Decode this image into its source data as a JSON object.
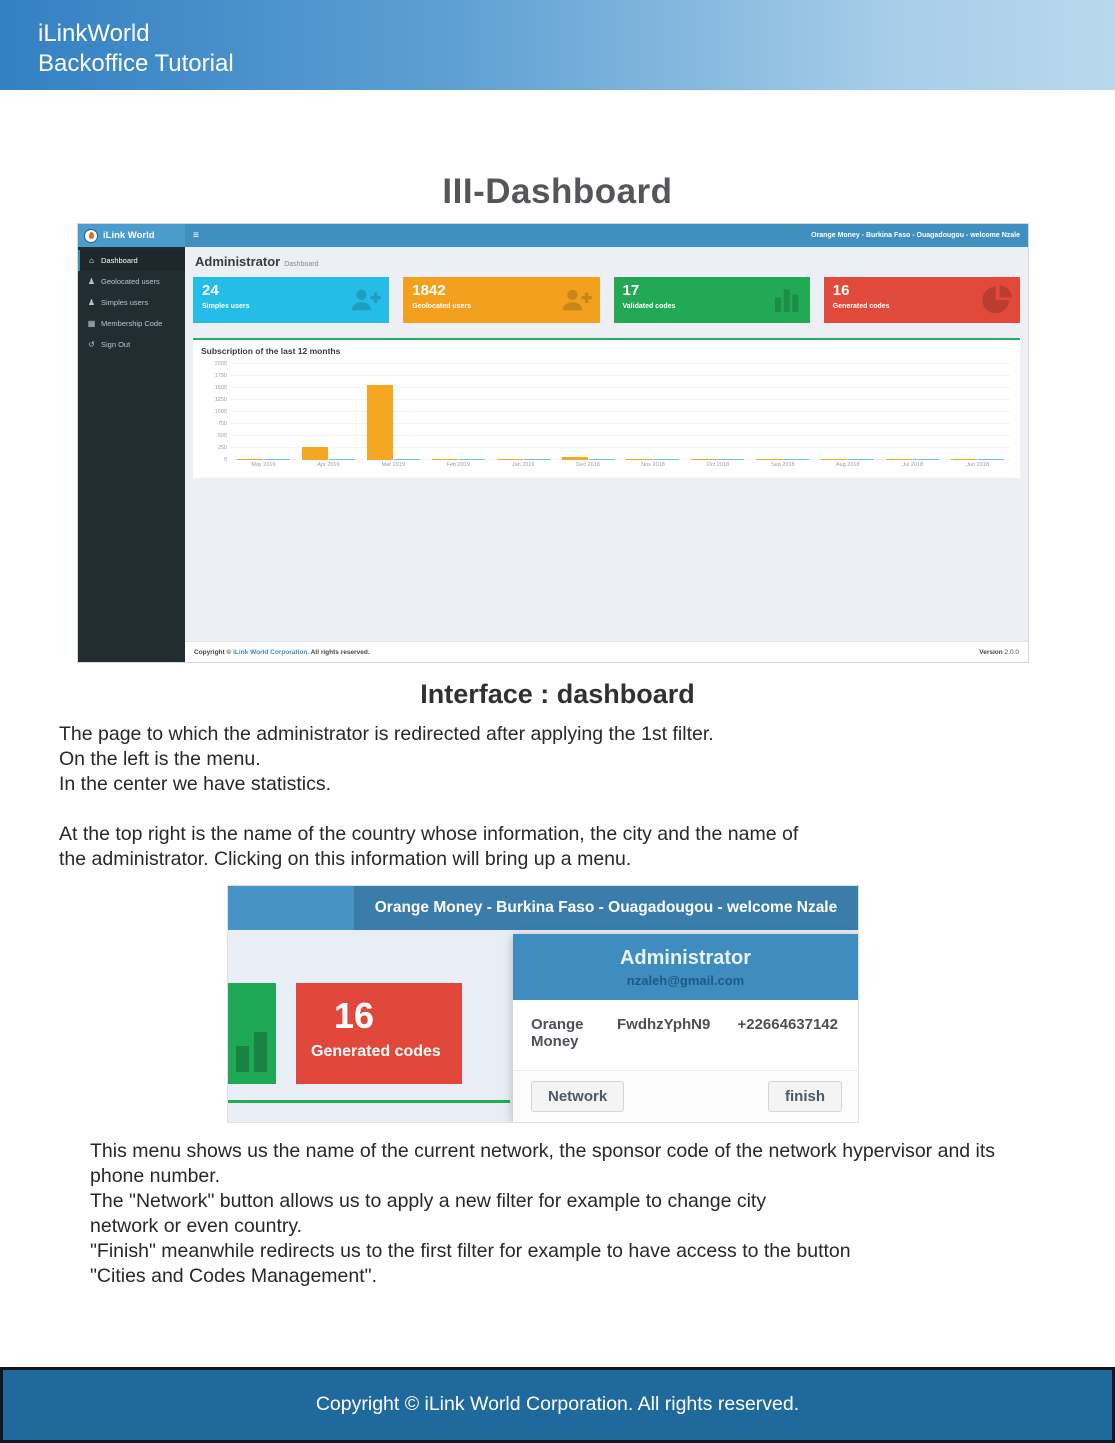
{
  "banner": {
    "line1": "iLinkWorld",
    "line2": "Backoffice Tutorial"
  },
  "title": "III-Dashboard",
  "subtitle": "Interface : dashboard",
  "screenshot1": {
    "navbar": {
      "brand": "iLink World",
      "menu_icon": "≡",
      "user_info": "Orange Money - Burkina Faso - Ouagadougou - welcome Nzale"
    },
    "sidebar": {
      "items": [
        {
          "label": "Dashboard",
          "icon": "home-icon",
          "active": true
        },
        {
          "label": "Geolocated users",
          "icon": "users-icon",
          "active": false
        },
        {
          "label": "Simples users",
          "icon": "users-icon",
          "active": false
        },
        {
          "label": "Membership Code",
          "icon": "table-icon",
          "active": false
        },
        {
          "label": "Sign Out",
          "icon": "power-icon",
          "active": false
        }
      ]
    },
    "content_header": {
      "title": "Administrator",
      "subtitle": "Dashboard"
    },
    "stat_cards": [
      {
        "value": "24",
        "label": "Simples users",
        "color": "#23bde8",
        "icon": "user-plus-icon"
      },
      {
        "value": "1842",
        "label": "Geolocated users",
        "color": "#f2a01d",
        "icon": "user-plus-icon"
      },
      {
        "value": "17",
        "label": "Validated codes",
        "color": "#23a956",
        "icon": "bar-chart-icon"
      },
      {
        "value": "16",
        "label": "Generated codes",
        "color": "#e1493a",
        "icon": "pie-chart-icon"
      }
    ],
    "footer": {
      "copyright_prefix": "Copyright © ",
      "copyright_link": "iLink World Corporation.",
      "copyright_suffix": " All rights reserved.",
      "version_label": "Version",
      "version_value": "2.0.0"
    }
  },
  "chart_data": {
    "type": "bar",
    "title": "Subscription of the last 12 months",
    "categories": [
      "May 2019",
      "Apr 2019",
      "Mar 2019",
      "Feb 2019",
      "Jan 2019",
      "Dec 2018",
      "Nov 2018",
      "Oct 2018",
      "Sep 2018",
      "Aug 2018",
      "Jul 2018",
      "Jun 2018"
    ],
    "series": [
      {
        "name": "subscriptions-orange",
        "color": "#f5a623",
        "values": [
          10,
          270,
          1560,
          15,
          8,
          60,
          12,
          10,
          8,
          8,
          18,
          6
        ]
      },
      {
        "name": "subscriptions-blue",
        "color": "#67c5ea",
        "values": [
          18,
          18,
          28,
          20,
          16,
          22,
          16,
          14,
          12,
          12,
          14,
          14
        ]
      }
    ],
    "ylim": [
      0,
      2000
    ],
    "yticks": [
      0,
      250,
      500,
      750,
      1000,
      1250,
      1500,
      1750,
      2000
    ],
    "grid": true,
    "legend_position": "none"
  },
  "paragraph1": [
    "The page to which the administrator is redirected after applying the 1st filter.",
    "On the left is the menu.",
    "In the center we have statistics.",
    "",
    "At the top right is the name of the country whose information, the city and the name of",
    " the administrator. Clicking on this information will bring up a menu."
  ],
  "screenshot2": {
    "navbar_text": "Orange Money - Burkina Faso - Ouagadougou - welcome Nzale",
    "red_card": {
      "value": "16",
      "label": "Generated codes"
    },
    "dropdown": {
      "title": "Administrator",
      "email": "nzaleh@gmail.com",
      "network_name": "Orange Money",
      "sponsor_code": "FwdhzYphN9",
      "phone": "+22664637142",
      "buttons": [
        {
          "label": "Network"
        },
        {
          "label": "finish"
        }
      ]
    }
  },
  "paragraph2": [
    "This menu shows us the name of the current network, the sponsor code of the network hypervisor and its",
    "phone number.",
    "The \"Network\" button allows us to apply a new filter for example to change city",
    "network or even country.",
    "\"Finish\" meanwhile redirects us to the first filter for example to have access to the button",
    " \"Cities and Codes Management\"."
  ],
  "page_footer": "Copyright © iLink World Corporation. All rights reserved."
}
